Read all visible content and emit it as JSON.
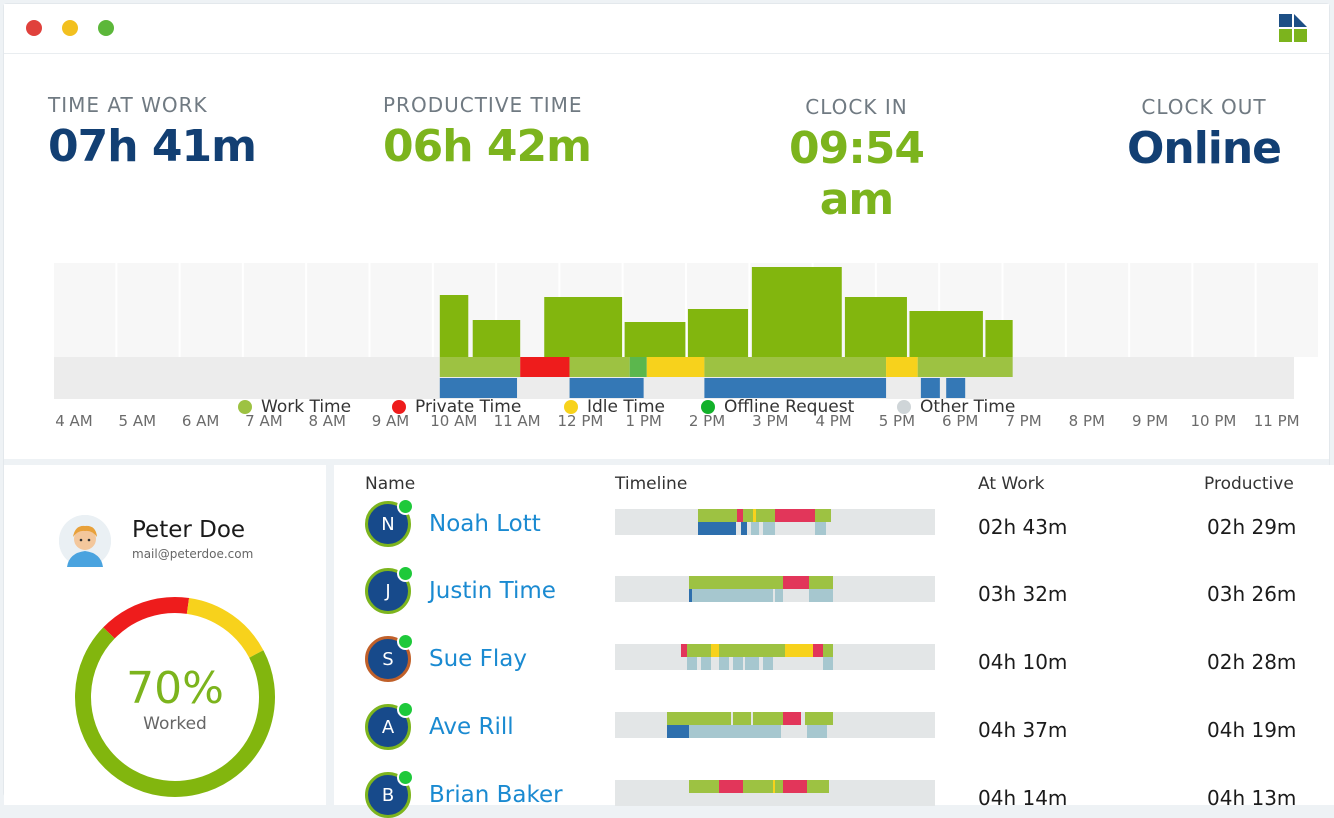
{
  "window": {
    "traffic_lights": [
      "#e0413c",
      "#f2c01f",
      "#5cb73a"
    ],
    "logo_colors": [
      "#1d4f85",
      "#7cb41d"
    ]
  },
  "stats": {
    "time_at_work": {
      "label": "TIME AT WORK",
      "value": "07h 41m",
      "color": "#123f73"
    },
    "productive_time": {
      "label": "PRODUCTIVE TIME",
      "value": "06h 42m",
      "color": "#7cb41d"
    },
    "clock_in": {
      "label": "CLOCK IN",
      "value": "09:54 am",
      "color": "#7cb41d"
    },
    "clock_out": {
      "label": "CLOCK OUT",
      "value": "Online",
      "color": "#123f73"
    }
  },
  "colors": {
    "work": "#82b60e",
    "work_light": "#9dc242",
    "private": "#ee1c1c",
    "idle": "#f7d21c",
    "offline": "#5bb74d",
    "other": "#cfd5d8",
    "blue": "#3478b6",
    "track": "#ececec",
    "tl_work": "#9dc242",
    "tl_private": "#e2365a",
    "tl_idle": "#f7d21c",
    "tl_blue": "#2d6fad",
    "tl_lightblue": "#a6c7cf"
  },
  "chart_data": {
    "type": "bar",
    "hours": [
      "4 AM",
      "5 AM",
      "6 AM",
      "7 AM",
      "8 AM",
      "9 AM",
      "10 AM",
      "11 AM",
      "12 PM",
      "1 PM",
      "2 PM",
      "3 PM",
      "4 PM",
      "5 PM",
      "6 PM",
      "7 PM",
      "8 PM",
      "9 PM",
      "10 PM",
      "11 PM"
    ],
    "bars": [
      {
        "start": 10.0,
        "end": 10.45,
        "value": 0.62
      },
      {
        "start": 10.52,
        "end": 11.27,
        "value": 0.37
      },
      {
        "start": 11.65,
        "end": 12.88,
        "value": 0.6
      },
      {
        "start": 12.92,
        "end": 13.88,
        "value": 0.35
      },
      {
        "start": 13.92,
        "end": 14.87,
        "value": 0.48
      },
      {
        "start": 14.93,
        "end": 16.35,
        "value": 0.9
      },
      {
        "start": 16.4,
        "end": 17.38,
        "value": 0.6
      },
      {
        "start": 17.42,
        "end": 18.58,
        "value": 0.46
      },
      {
        "start": 18.62,
        "end": 19.05,
        "value": 0.37
      }
    ],
    "status_band": [
      {
        "start": 10.0,
        "end": 11.27,
        "kind": "work"
      },
      {
        "start": 11.27,
        "end": 12.05,
        "kind": "private"
      },
      {
        "start": 12.05,
        "end": 13.0,
        "kind": "work"
      },
      {
        "start": 13.0,
        "end": 13.27,
        "kind": "offline"
      },
      {
        "start": 13.27,
        "end": 14.18,
        "kind": "idle"
      },
      {
        "start": 14.18,
        "end": 17.05,
        "kind": "work"
      },
      {
        "start": 17.05,
        "end": 17.55,
        "kind": "idle"
      },
      {
        "start": 17.55,
        "end": 19.05,
        "kind": "work"
      }
    ],
    "blue_band": [
      {
        "start": 10.0,
        "end": 11.22
      },
      {
        "start": 12.05,
        "end": 13.22
      },
      {
        "start": 14.18,
        "end": 17.05
      },
      {
        "start": 17.6,
        "end": 17.9
      },
      {
        "start": 18.0,
        "end": 18.3
      }
    ],
    "legend": [
      {
        "label": "Work Time",
        "color": "#9dc242"
      },
      {
        "label": "Private Time",
        "color": "#ee1c1c"
      },
      {
        "label": "Idle Time",
        "color": "#f7d21c"
      },
      {
        "label": "Offline Request",
        "color": "#12b12a"
      },
      {
        "label": "Other Time",
        "color": "#cfd5d8"
      }
    ]
  },
  "profile": {
    "name": "Peter Doe",
    "email": "mail@peterdoe.com",
    "percent": "70%",
    "percent_label": "Worked",
    "donut": [
      {
        "kind": "work",
        "fraction": 0.7,
        "color": "#82b60e"
      },
      {
        "kind": "private",
        "fraction": 0.15,
        "color": "#ee1c1c"
      },
      {
        "kind": "idle",
        "fraction": 0.15,
        "color": "#f7d21c"
      }
    ]
  },
  "table": {
    "headers": {
      "name": "Name",
      "timeline": "Timeline",
      "at_work": "At Work",
      "productive": "Productive"
    },
    "rows": [
      {
        "initial": "N",
        "name": "Noah Lott",
        "at_work": "02h 43m",
        "productive": "02h 29m",
        "ring": "#7db51e",
        "top": [
          [
            0.258,
            0.381,
            "tl_work"
          ],
          [
            0.381,
            0.4,
            "tl_private"
          ],
          [
            0.4,
            0.431,
            "tl_work"
          ],
          [
            0.431,
            0.44,
            "tl_idle"
          ],
          [
            0.44,
            0.5,
            "tl_work"
          ],
          [
            0.5,
            0.625,
            "tl_private"
          ],
          [
            0.625,
            0.675,
            "tl_work"
          ]
        ],
        "bottom": [
          [
            0.258,
            0.281,
            "tl_blue"
          ],
          [
            0.281,
            0.378,
            "tl_blue"
          ],
          [
            0.394,
            0.412,
            "tl_blue"
          ],
          [
            0.425,
            0.45,
            "tl_lightblue"
          ],
          [
            0.463,
            0.5,
            "tl_lightblue"
          ],
          [
            0.625,
            0.66,
            "tl_lightblue"
          ]
        ]
      },
      {
        "initial": "J",
        "name": "Justin Time",
        "at_work": "03h 32m",
        "productive": "03h 26m",
        "ring": "#7db51e",
        "top": [
          [
            0.231,
            0.494,
            "tl_work"
          ],
          [
            0.494,
            0.525,
            "tl_work"
          ],
          [
            0.525,
            0.606,
            "tl_private"
          ],
          [
            0.606,
            0.681,
            "tl_work"
          ]
        ],
        "bottom": [
          [
            0.231,
            0.24,
            "tl_blue"
          ],
          [
            0.24,
            0.494,
            "tl_lightblue"
          ],
          [
            0.5,
            0.525,
            "tl_lightblue"
          ],
          [
            0.606,
            0.681,
            "tl_lightblue"
          ]
        ]
      },
      {
        "initial": "S",
        "name": "Sue Flay",
        "at_work": "04h 10m",
        "productive": "02h 28m",
        "ring": "#c0602a",
        "top": [
          [
            0.206,
            0.225,
            "tl_private"
          ],
          [
            0.225,
            0.3,
            "tl_work"
          ],
          [
            0.3,
            0.325,
            "tl_idle"
          ],
          [
            0.325,
            0.53,
            "tl_work"
          ],
          [
            0.53,
            0.619,
            "tl_idle"
          ],
          [
            0.619,
            0.65,
            "tl_private"
          ],
          [
            0.65,
            0.681,
            "tl_work"
          ]
        ],
        "bottom": [
          [
            0.225,
            0.256,
            "tl_lightblue"
          ],
          [
            0.269,
            0.3,
            "tl_lightblue"
          ],
          [
            0.325,
            0.356,
            "tl_lightblue"
          ],
          [
            0.369,
            0.4,
            "tl_lightblue"
          ],
          [
            0.406,
            0.45,
            "tl_lightblue"
          ],
          [
            0.462,
            0.494,
            "tl_lightblue"
          ],
          [
            0.65,
            0.681,
            "tl_lightblue"
          ]
        ]
      },
      {
        "initial": "A",
        "name": "Ave Rill",
        "at_work": "04h 37m",
        "productive": "04h 19m",
        "ring": "#7db51e",
        "top": [
          [
            0.163,
            0.363,
            "tl_work"
          ],
          [
            0.369,
            0.425,
            "tl_work"
          ],
          [
            0.431,
            0.525,
            "tl_work"
          ],
          [
            0.525,
            0.581,
            "tl_private"
          ],
          [
            0.594,
            0.681,
            "tl_work"
          ]
        ],
        "bottom": [
          [
            0.163,
            0.231,
            "tl_blue"
          ],
          [
            0.231,
            0.519,
            "tl_lightblue"
          ],
          [
            0.6,
            0.663,
            "tl_lightblue"
          ]
        ]
      },
      {
        "initial": "B",
        "name": "Brian Baker",
        "at_work": "04h 14m",
        "productive": "04h 13m",
        "ring": "#7db51e",
        "top": [
          [
            0.231,
            0.325,
            "tl_work"
          ],
          [
            0.325,
            0.4,
            "tl_private"
          ],
          [
            0.4,
            0.494,
            "tl_work"
          ],
          [
            0.494,
            0.5,
            "tl_idle"
          ],
          [
            0.5,
            0.525,
            "tl_work"
          ],
          [
            0.525,
            0.6,
            "tl_private"
          ],
          [
            0.6,
            0.669,
            "tl_work"
          ]
        ],
        "bottom": []
      }
    ]
  }
}
